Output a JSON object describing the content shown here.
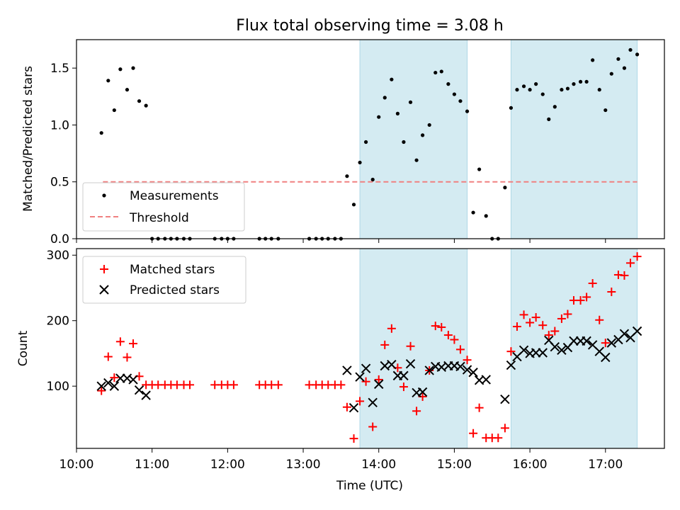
{
  "chart_data": [
    {
      "type": "scatter",
      "title": "Flux total observing time = 3.08 h",
      "xlabel": "",
      "ylabel": "Matched/Predicted stars",
      "xlim": [
        10.0,
        17.78
      ],
      "ylim": [
        0.0,
        1.75
      ],
      "yticks": [
        "0.0",
        "0.5",
        "1.0",
        "1.5"
      ],
      "grid": false,
      "legend": "lower-left",
      "threshold": {
        "name": "Threshold",
        "value": 0.5,
        "x_start": 10.35,
        "x_end": 17.42,
        "color": "#f08080"
      },
      "shaded_regions": [
        [
          13.75,
          15.17
        ],
        [
          15.75,
          17.42
        ]
      ],
      "shade_color": "#add8e6",
      "series": [
        {
          "name": "Measurements",
          "color": "#000000",
          "points": [
            [
              10.33,
              0.93
            ],
            [
              10.42,
              1.39
            ],
            [
              10.5,
              1.13
            ],
            [
              10.58,
              1.49
            ],
            [
              10.67,
              1.31
            ],
            [
              10.75,
              1.5
            ],
            [
              10.83,
              1.21
            ],
            [
              10.92,
              1.17
            ],
            [
              11.0,
              0.0
            ],
            [
              11.08,
              0.0
            ],
            [
              11.17,
              0.0
            ],
            [
              11.25,
              0.0
            ],
            [
              11.33,
              0.0
            ],
            [
              11.42,
              0.0
            ],
            [
              11.5,
              0.0
            ],
            [
              11.83,
              0.0
            ],
            [
              11.92,
              0.0
            ],
            [
              12.0,
              0.0
            ],
            [
              12.08,
              0.0
            ],
            [
              12.42,
              0.0
            ],
            [
              12.5,
              0.0
            ],
            [
              12.58,
              0.0
            ],
            [
              12.67,
              0.0
            ],
            [
              13.08,
              0.0
            ],
            [
              13.17,
              0.0
            ],
            [
              13.25,
              0.0
            ],
            [
              13.33,
              0.0
            ],
            [
              13.42,
              0.0
            ],
            [
              13.5,
              0.0
            ],
            [
              13.58,
              0.55
            ],
            [
              13.67,
              0.3
            ],
            [
              13.75,
              0.67
            ],
            [
              13.83,
              0.85
            ],
            [
              13.92,
              0.52
            ],
            [
              14.0,
              1.07
            ],
            [
              14.08,
              1.24
            ],
            [
              14.17,
              1.4
            ],
            [
              14.25,
              1.1
            ],
            [
              14.33,
              0.85
            ],
            [
              14.42,
              1.2
            ],
            [
              14.5,
              0.69
            ],
            [
              14.58,
              0.91
            ],
            [
              14.67,
              1.0
            ],
            [
              14.75,
              1.46
            ],
            [
              14.83,
              1.47
            ],
            [
              14.92,
              1.36
            ],
            [
              15.0,
              1.27
            ],
            [
              15.08,
              1.21
            ],
            [
              15.17,
              1.12
            ],
            [
              15.25,
              0.23
            ],
            [
              15.33,
              0.61
            ],
            [
              15.42,
              0.2
            ],
            [
              15.5,
              0.0
            ],
            [
              15.58,
              0.0
            ],
            [
              15.67,
              0.45
            ],
            [
              15.75,
              1.15
            ],
            [
              15.83,
              1.31
            ],
            [
              15.92,
              1.34
            ],
            [
              16.0,
              1.31
            ],
            [
              16.08,
              1.36
            ],
            [
              16.17,
              1.27
            ],
            [
              16.25,
              1.05
            ],
            [
              16.33,
              1.16
            ],
            [
              16.42,
              1.31
            ],
            [
              16.5,
              1.32
            ],
            [
              16.58,
              1.36
            ],
            [
              16.67,
              1.38
            ],
            [
              16.75,
              1.38
            ],
            [
              16.83,
              1.57
            ],
            [
              16.92,
              1.31
            ],
            [
              17.0,
              1.13
            ],
            [
              17.08,
              1.45
            ],
            [
              17.17,
              1.58
            ],
            [
              17.25,
              1.5
            ],
            [
              17.33,
              1.66
            ],
            [
              17.42,
              1.62
            ]
          ]
        }
      ]
    },
    {
      "type": "scatter",
      "xlabel": "Time (UTC)",
      "ylabel": "Count",
      "xlim": [
        10.0,
        17.78
      ],
      "ylim": [
        5,
        310
      ],
      "xticks": [
        "10:00",
        "11:00",
        "12:00",
        "13:00",
        "14:00",
        "15:00",
        "16:00",
        "17:00"
      ],
      "yticks": [
        "100",
        "200",
        "300"
      ],
      "grid": false,
      "legend": "top-left",
      "shaded_regions": [
        [
          13.75,
          15.17
        ],
        [
          15.75,
          17.42
        ]
      ],
      "shade_color": "#add8e6",
      "series": [
        {
          "name": "Matched stars",
          "marker": "plus",
          "color": "#ff0000",
          "points": [
            [
              10.33,
              93
            ],
            [
              10.42,
              145
            ],
            [
              10.5,
              113
            ],
            [
              10.58,
              168
            ],
            [
              10.67,
              144
            ],
            [
              10.75,
              165
            ],
            [
              10.83,
              115
            ],
            [
              10.92,
              102
            ],
            [
              11.0,
              102
            ],
            [
              11.08,
              102
            ],
            [
              11.17,
              102
            ],
            [
              11.25,
              102
            ],
            [
              11.33,
              102
            ],
            [
              11.42,
              102
            ],
            [
              11.5,
              102
            ],
            [
              11.83,
              102
            ],
            [
              11.92,
              102
            ],
            [
              12.0,
              102
            ],
            [
              12.08,
              102
            ],
            [
              12.42,
              102
            ],
            [
              12.5,
              102
            ],
            [
              12.58,
              102
            ],
            [
              12.67,
              102
            ],
            [
              13.08,
              102
            ],
            [
              13.17,
              102
            ],
            [
              13.25,
              102
            ],
            [
              13.33,
              102
            ],
            [
              13.42,
              102
            ],
            [
              13.5,
              102
            ],
            [
              13.58,
              68
            ],
            [
              13.67,
              20
            ],
            [
              13.75,
              77
            ],
            [
              13.83,
              107
            ],
            [
              13.92,
              38
            ],
            [
              14.0,
              110
            ],
            [
              14.08,
              163
            ],
            [
              14.17,
              188
            ],
            [
              14.25,
              128
            ],
            [
              14.33,
              99
            ],
            [
              14.42,
              161
            ],
            [
              14.5,
              62
            ],
            [
              14.58,
              84
            ],
            [
              14.67,
              124
            ],
            [
              14.75,
              192
            ],
            [
              14.83,
              190
            ],
            [
              14.92,
              178
            ],
            [
              15.0,
              171
            ],
            [
              15.08,
              156
            ],
            [
              15.17,
              140
            ],
            [
              15.25,
              28
            ],
            [
              15.33,
              67
            ],
            [
              15.42,
              21
            ],
            [
              15.5,
              21
            ],
            [
              15.58,
              21
            ],
            [
              15.67,
              36
            ],
            [
              15.75,
              153
            ],
            [
              15.83,
              191
            ],
            [
              15.92,
              209
            ],
            [
              16.0,
              197
            ],
            [
              16.08,
              205
            ],
            [
              16.17,
              193
            ],
            [
              16.25,
              178
            ],
            [
              16.33,
              184
            ],
            [
              16.42,
              203
            ],
            [
              16.5,
              210
            ],
            [
              16.58,
              231
            ],
            [
              16.67,
              231
            ],
            [
              16.75,
              236
            ],
            [
              16.83,
              257
            ],
            [
              16.92,
              201
            ],
            [
              17.0,
              166
            ],
            [
              17.08,
              244
            ],
            [
              17.17,
              270
            ],
            [
              17.25,
              269
            ],
            [
              17.33,
              288
            ],
            [
              17.42,
              298
            ]
          ]
        },
        {
          "name": "Predicted stars",
          "marker": "x",
          "color": "#000000",
          "points": [
            [
              10.33,
              100
            ],
            [
              10.42,
              105
            ],
            [
              10.5,
              100
            ],
            [
              10.58,
              112
            ],
            [
              10.67,
              112
            ],
            [
              10.75,
              110
            ],
            [
              10.83,
              94
            ],
            [
              10.92,
              86
            ],
            [
              13.58,
              124
            ],
            [
              13.67,
              67
            ],
            [
              13.75,
              114
            ],
            [
              13.83,
              127
            ],
            [
              13.92,
              75
            ],
            [
              14.0,
              103
            ],
            [
              14.08,
              131
            ],
            [
              14.17,
              133
            ],
            [
              14.25,
              116
            ],
            [
              14.33,
              116
            ],
            [
              14.42,
              134
            ],
            [
              14.5,
              90
            ],
            [
              14.58,
              91
            ],
            [
              14.67,
              124
            ],
            [
              14.75,
              130
            ],
            [
              14.83,
              129
            ],
            [
              14.92,
              131
            ],
            [
              15.0,
              131
            ],
            [
              15.08,
              130
            ],
            [
              15.17,
              125
            ],
            [
              15.25,
              121
            ],
            [
              15.33,
              109
            ],
            [
              15.42,
              110
            ],
            [
              15.67,
              80
            ],
            [
              15.75,
              132
            ],
            [
              15.83,
              145
            ],
            [
              15.92,
              155
            ],
            [
              16.0,
              150
            ],
            [
              16.08,
              151
            ],
            [
              16.17,
              151
            ],
            [
              16.25,
              170
            ],
            [
              16.33,
              160
            ],
            [
              16.42,
              155
            ],
            [
              16.5,
              159
            ],
            [
              16.58,
              169
            ],
            [
              16.67,
              169
            ],
            [
              16.75,
              169
            ],
            [
              16.83,
              163
            ],
            [
              16.92,
              153
            ],
            [
              17.0,
              144
            ],
            [
              17.08,
              166
            ],
            [
              17.17,
              171
            ],
            [
              17.25,
              180
            ],
            [
              17.33,
              174
            ],
            [
              17.42,
              184
            ]
          ]
        }
      ]
    }
  ]
}
